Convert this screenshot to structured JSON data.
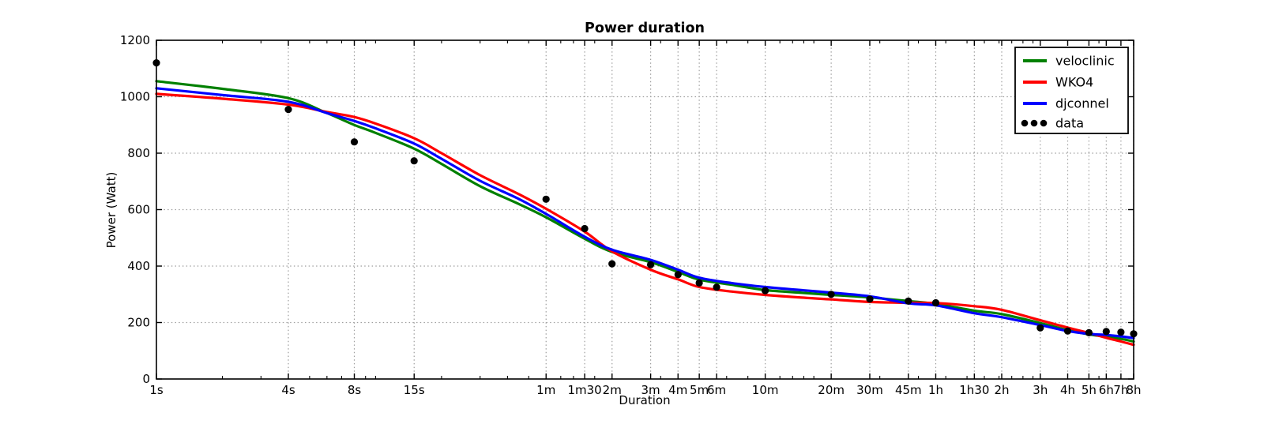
{
  "chart_data": {
    "type": "line",
    "title": "Power duration",
    "xlabel": "Duration",
    "ylabel": "Power (Watt)",
    "x_scale": "log",
    "x_range_seconds": [
      1,
      28800
    ],
    "ylim": [
      0,
      1200
    ],
    "grid": true,
    "legend_position": "upper right",
    "y_ticks": [
      0,
      200,
      400,
      600,
      800,
      1000,
      1200
    ],
    "x_ticks": [
      {
        "t": 1,
        "label": "1s"
      },
      {
        "t": 4,
        "label": "4s"
      },
      {
        "t": 8,
        "label": "8s"
      },
      {
        "t": 15,
        "label": "15s"
      },
      {
        "t": 60,
        "label": "1m"
      },
      {
        "t": 90,
        "label": "1m30"
      },
      {
        "t": 120,
        "label": "2m"
      },
      {
        "t": 180,
        "label": "3m"
      },
      {
        "t": 240,
        "label": "4m"
      },
      {
        "t": 300,
        "label": "5m"
      },
      {
        "t": 360,
        "label": "6m"
      },
      {
        "t": 600,
        "label": "10m"
      },
      {
        "t": 1200,
        "label": "20m"
      },
      {
        "t": 1800,
        "label": "30m"
      },
      {
        "t": 2700,
        "label": "45m"
      },
      {
        "t": 3600,
        "label": "1h"
      },
      {
        "t": 5400,
        "label": "1h30"
      },
      {
        "t": 7200,
        "label": "2h"
      },
      {
        "t": 10800,
        "label": "3h"
      },
      {
        "t": 14400,
        "label": "4h"
      },
      {
        "t": 18000,
        "label": "5h"
      },
      {
        "t": 21600,
        "label": "6h"
      },
      {
        "t": 25200,
        "label": "7h"
      },
      {
        "t": 28800,
        "label": "8h"
      }
    ],
    "series": [
      {
        "name": "veloclinic",
        "color": "#008000",
        "style": "line",
        "x": [
          1,
          2,
          4,
          6,
          8,
          10,
          15,
          20,
          30,
          45,
          60,
          90,
          120,
          180,
          240,
          300,
          420,
          600,
          900,
          1200,
          1800,
          2700,
          3600,
          5400,
          7200,
          10800,
          14400,
          18000,
          21600,
          25200,
          28800
        ],
        "y": [
          1055,
          1028,
          995,
          942,
          900,
          872,
          816,
          762,
          683,
          620,
          573,
          497,
          450,
          414,
          379,
          352,
          334,
          315,
          305,
          298,
          289,
          276,
          266,
          242,
          230,
          198,
          173,
          158,
          150,
          142,
          133
        ]
      },
      {
        "name": "WKO4",
        "color": "#ff0000",
        "style": "line",
        "x": [
          1,
          2,
          4,
          6,
          8,
          10,
          15,
          20,
          30,
          45,
          60,
          90,
          120,
          180,
          240,
          300,
          420,
          600,
          900,
          1200,
          1800,
          2700,
          3600,
          5400,
          7200,
          10800,
          14400,
          18000,
          21600,
          25200,
          28800
        ],
        "y": [
          1010,
          993,
          972,
          946,
          928,
          905,
          853,
          800,
          722,
          655,
          603,
          522,
          452,
          387,
          353,
          326,
          310,
          298,
          288,
          282,
          273,
          270,
          269,
          258,
          245,
          208,
          182,
          163,
          146,
          133,
          121
        ]
      },
      {
        "name": "djconnel",
        "color": "#0000ff",
        "style": "line",
        "x": [
          1,
          2,
          4,
          6,
          8,
          10,
          15,
          20,
          30,
          45,
          60,
          90,
          120,
          180,
          240,
          300,
          420,
          600,
          900,
          1200,
          1800,
          2700,
          3600,
          5400,
          7200,
          10800,
          14400,
          18000,
          21600,
          25200,
          28800
        ],
        "y": [
          1030,
          1006,
          982,
          942,
          914,
          888,
          834,
          780,
          702,
          638,
          585,
          504,
          458,
          422,
          387,
          359,
          340,
          326,
          314,
          306,
          293,
          268,
          261,
          233,
          219,
          191,
          170,
          160,
          156,
          151,
          145
        ]
      },
      {
        "name": "data",
        "color": "#000000",
        "style": "points",
        "x": [
          1,
          4,
          8,
          15,
          60,
          90,
          120,
          180,
          240,
          300,
          360,
          600,
          1200,
          1800,
          2700,
          3600,
          10800,
          14400,
          18000,
          21600,
          25200,
          28800
        ],
        "y": [
          1120,
          955,
          840,
          773,
          637,
          533,
          408,
          405,
          370,
          340,
          325,
          313,
          300,
          283,
          276,
          270,
          181,
          170,
          164,
          168,
          166,
          160
        ]
      }
    ]
  }
}
